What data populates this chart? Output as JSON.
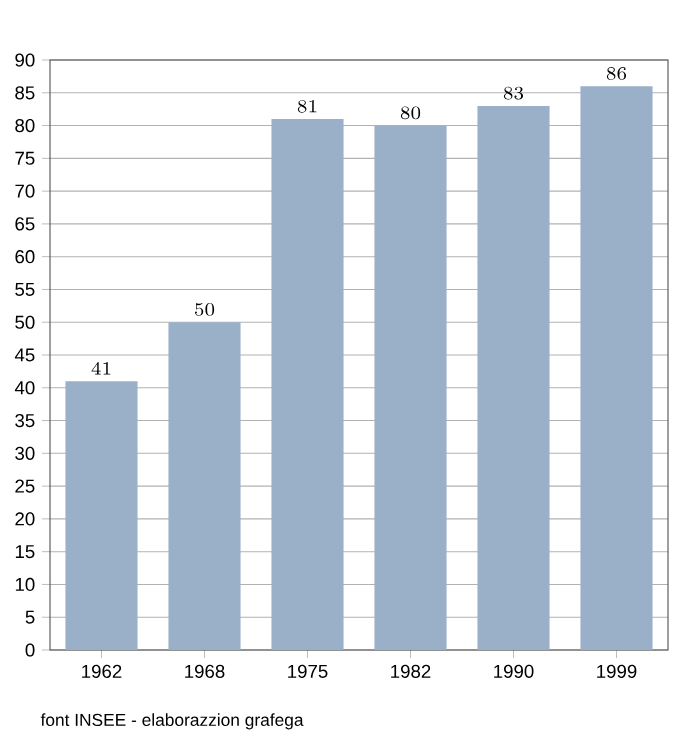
{
  "chart_data": {
    "type": "bar",
    "categories": [
      "1962",
      "1968",
      "1975",
      "1982",
      "1990",
      "1999"
    ],
    "values": [
      41,
      50,
      81,
      80,
      83,
      86
    ],
    "color": "#9ab0c9",
    "ylim": [
      0,
      90
    ],
    "yticks": [
      0,
      5,
      10,
      15,
      20,
      25,
      30,
      35,
      40,
      45,
      50,
      55,
      60,
      65,
      70,
      75,
      80,
      85,
      90
    ],
    "grid": "y",
    "data_labels": true,
    "annotations": [
      "font INSEE - elaborazzion grafega"
    ]
  }
}
